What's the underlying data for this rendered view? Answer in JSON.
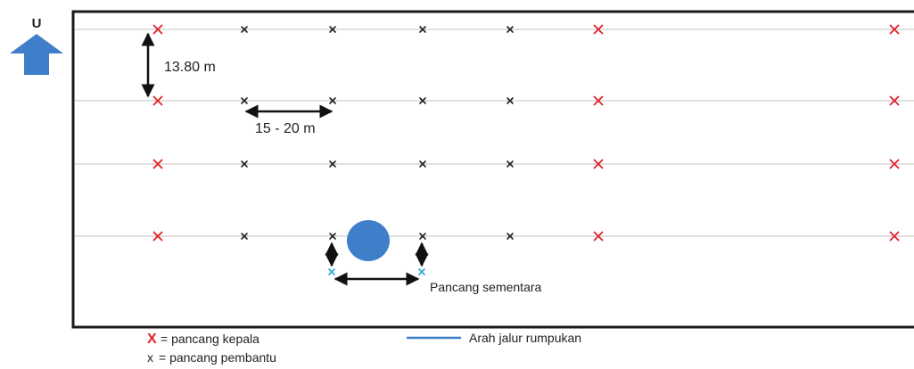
{
  "compass": {
    "label": "U",
    "color": "#3f7fca",
    "icon": "north-arrow-icon"
  },
  "dimensions": {
    "row_spacing": "13.80 m",
    "stake_spacing": "15 - 20 m"
  },
  "temporary_stakes_label": "Pancang sementara",
  "legend": {
    "head_symbol": "X",
    "head_text": "= pancang kepala",
    "helper_symbol": "x",
    "helper_text": "= pancang pembantu",
    "line_text": "Arah jalur rumpukan"
  },
  "colors": {
    "head_stake": "#e0222a",
    "helper_stake": "#222222",
    "temporary_stake": "#2aa6d6",
    "rumpukan_line": "#3f7fca",
    "obstacle": "#3f7fca",
    "row_line": "#d6d6d6",
    "frame": "#1a1a1a"
  },
  "grid": {
    "rows": 4,
    "columns": 7,
    "head_columns": [
      0,
      5,
      6
    ],
    "obstacle": {
      "row": 3,
      "between_columns": [
        2,
        3
      ]
    }
  }
}
